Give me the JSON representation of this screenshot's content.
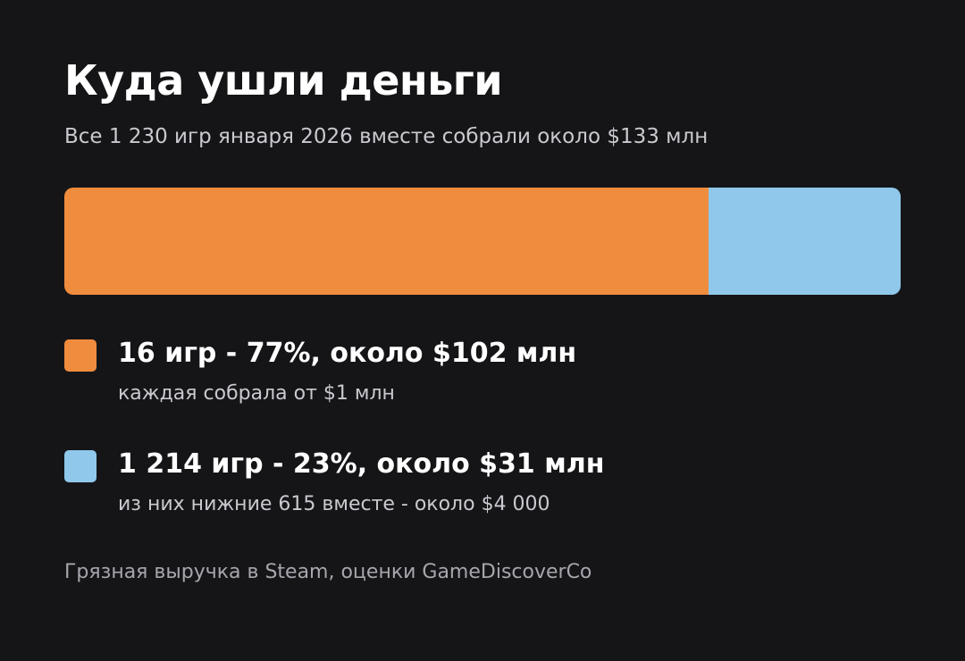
{
  "title": "Куда ушли деньги",
  "subtitle": "Все 1 230 игр января 2026 вместе собрали около $133 млн",
  "chart_data": {
    "type": "bar",
    "orientation": "horizontal-stacked",
    "categories": [
      "16 игр",
      "1 214 игр"
    ],
    "values": [
      77,
      23
    ],
    "unit": "%",
    "colors": [
      "#f08c3e",
      "#8fc8ea"
    ]
  },
  "legend": [
    {
      "main": "16 игр - 77%, около $102 млн",
      "sub": "каждая собрала от $1 млн",
      "color": "#f08c3e"
    },
    {
      "main": "1 214 игр - 23%, около $31 млн",
      "sub": "из них нижние 615 вместе - около $4 000",
      "color": "#8fc8ea"
    }
  ],
  "footnote": "Грязная выручка в Steam, оценки GameDiscoverCo"
}
